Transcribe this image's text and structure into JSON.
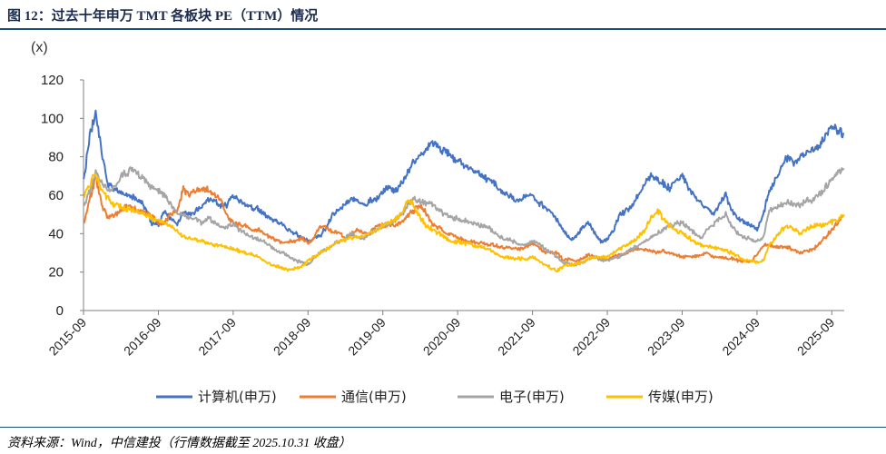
{
  "figure": {
    "title": "图 12：过去十年申万 TMT 各板块 PE（TTM）情况",
    "source": "资料来源：Wind，中信建投（行情数据截至 2025.10.31 收盘）"
  },
  "chart_data": {
    "type": "line",
    "ylabel": "(x)",
    "ylim": [
      0,
      120
    ],
    "yticks": [
      "0",
      "20",
      "40",
      "60",
      "80",
      "100",
      "120"
    ],
    "xlim": [
      2015.667,
      2025.833
    ],
    "xtick_labels": [
      "2015-09",
      "2016-09",
      "2017-09",
      "2018-09",
      "2019-09",
      "2020-09",
      "2021-09",
      "2022-09",
      "2023-09",
      "2024-09",
      "2025-09"
    ],
    "x": [
      2015.67,
      2015.75,
      2015.83,
      2015.92,
      2016.0,
      2016.08,
      2016.17,
      2016.25,
      2016.33,
      2016.42,
      2016.5,
      2016.58,
      2016.67,
      2016.75,
      2016.83,
      2016.92,
      2017.0,
      2017.08,
      2017.17,
      2017.25,
      2017.33,
      2017.42,
      2017.5,
      2017.58,
      2017.67,
      2017.75,
      2017.83,
      2017.92,
      2018.0,
      2018.08,
      2018.17,
      2018.25,
      2018.33,
      2018.42,
      2018.5,
      2018.58,
      2018.67,
      2018.75,
      2018.83,
      2018.92,
      2019.0,
      2019.08,
      2019.17,
      2019.25,
      2019.33,
      2019.42,
      2019.5,
      2019.58,
      2019.67,
      2019.75,
      2019.83,
      2019.92,
      2020.0,
      2020.08,
      2020.17,
      2020.25,
      2020.33,
      2020.42,
      2020.5,
      2020.58,
      2020.67,
      2020.75,
      2020.83,
      2020.92,
      2021.0,
      2021.08,
      2021.17,
      2021.25,
      2021.33,
      2021.42,
      2021.5,
      2021.58,
      2021.67,
      2021.75,
      2021.83,
      2021.92,
      2022.0,
      2022.08,
      2022.17,
      2022.25,
      2022.33,
      2022.42,
      2022.5,
      2022.58,
      2022.67,
      2022.75,
      2022.83,
      2022.92,
      2023.0,
      2023.08,
      2023.17,
      2023.25,
      2023.33,
      2023.42,
      2023.5,
      2023.58,
      2023.67,
      2023.75,
      2023.83,
      2023.92,
      2024.0,
      2024.08,
      2024.17,
      2024.25,
      2024.33,
      2024.42,
      2024.5,
      2024.58,
      2024.67,
      2024.75,
      2024.83,
      2024.92,
      2025.0,
      2025.08,
      2025.17,
      2025.25,
      2025.33,
      2025.42,
      2025.5,
      2025.58,
      2025.67,
      2025.75,
      2025.83
    ],
    "series": [
      {
        "name": "计算机(申万)",
        "color": "#4472c4",
        "values": [
          68,
          90,
          104,
          80,
          65,
          64,
          61,
          60,
          59,
          57,
          53,
          45,
          45,
          52,
          48,
          45,
          51,
          50,
          52,
          54,
          58,
          57,
          55,
          55,
          60,
          57,
          55,
          53,
          53,
          50,
          48,
          46,
          44,
          42,
          40,
          38,
          36,
          38,
          39,
          44,
          50,
          53,
          55,
          58,
          57,
          55,
          57,
          58,
          62,
          64,
          62,
          66,
          72,
          78,
          80,
          84,
          88,
          85,
          82,
          80,
          77,
          76,
          73,
          72,
          70,
          68,
          66,
          62,
          60,
          58,
          58,
          59,
          60,
          56,
          54,
          51,
          47,
          42,
          37,
          39,
          43,
          46,
          40,
          36,
          37,
          42,
          50,
          52,
          55,
          60,
          66,
          70,
          68,
          66,
          64,
          68,
          70,
          64,
          60,
          56,
          53,
          50,
          55,
          60,
          52,
          48,
          46,
          44,
          42,
          50,
          62,
          68,
          76,
          80,
          76,
          80,
          82,
          84,
          86,
          90,
          96,
          93,
          92
        ]
      },
      {
        "name": "通信(申万)",
        "color": "#ed7d31",
        "values": [
          45,
          58,
          70,
          54,
          48,
          50,
          52,
          55,
          53,
          52,
          50,
          49,
          46,
          46,
          50,
          52,
          63,
          61,
          62,
          64,
          63,
          60,
          58,
          50,
          45,
          45,
          44,
          42,
          42,
          40,
          38,
          37,
          35,
          36,
          36,
          38,
          35,
          38,
          44,
          43,
          41,
          40,
          38,
          40,
          42,
          40,
          41,
          44,
          44,
          45,
          44,
          46,
          50,
          52,
          55,
          50,
          45,
          43,
          40,
          40,
          38,
          37,
          36,
          35,
          35,
          34,
          34,
          33,
          33,
          32,
          32,
          33,
          35,
          33,
          30,
          30,
          30,
          26,
          27,
          26,
          27,
          29,
          28,
          27,
          27,
          28,
          29,
          30,
          31,
          32,
          32,
          31,
          30,
          31,
          30,
          29,
          28,
          28,
          28,
          29,
          30,
          28,
          28,
          27,
          27,
          26,
          26,
          26,
          29,
          34,
          34,
          33,
          33,
          33,
          31,
          30,
          31,
          32,
          35,
          38,
          42,
          46,
          49
        ]
      },
      {
        "name": "电子(申万)",
        "color": "#a5a5a5",
        "values": [
          55,
          62,
          72,
          66,
          62,
          65,
          70,
          72,
          73,
          70,
          68,
          64,
          62,
          60,
          55,
          50,
          50,
          48,
          48,
          45,
          48,
          46,
          44,
          43,
          45,
          42,
          40,
          38,
          37,
          36,
          33,
          31,
          30,
          28,
          26,
          25,
          24,
          27,
          30,
          32,
          34,
          36,
          38,
          40,
          38,
          38,
          40,
          42,
          44,
          45,
          47,
          50,
          55,
          58,
          56,
          56,
          55,
          52,
          50,
          48,
          48,
          47,
          46,
          45,
          44,
          43,
          40,
          38,
          37,
          36,
          34,
          34,
          36,
          35,
          32,
          30,
          28,
          25,
          24,
          24,
          25,
          27,
          28,
          26,
          26,
          27,
          28,
          30,
          32,
          34,
          36,
          38,
          40,
          42,
          44,
          45,
          46,
          43,
          40,
          38,
          42,
          45,
          48,
          50,
          44,
          40,
          38,
          37,
          36,
          38,
          52,
          54,
          55,
          57,
          55,
          55,
          57,
          58,
          60,
          64,
          68,
          72,
          74
        ]
      },
      {
        "name": "传媒(申万)",
        "color": "#ffc000",
        "values": [
          60,
          65,
          72,
          62,
          58,
          55,
          54,
          53,
          52,
          51,
          50,
          48,
          47,
          46,
          44,
          42,
          38,
          38,
          37,
          36,
          35,
          34,
          34,
          33,
          32,
          31,
          30,
          29,
          28,
          26,
          24,
          23,
          22,
          21,
          22,
          23,
          26,
          28,
          30,
          32,
          34,
          36,
          37,
          38,
          38,
          39,
          40,
          42,
          44,
          46,
          48,
          50,
          58,
          55,
          48,
          44,
          42,
          40,
          38,
          36,
          36,
          35,
          35,
          33,
          33,
          32,
          30,
          28,
          28,
          27,
          27,
          27,
          28,
          26,
          24,
          22,
          21,
          23,
          24,
          24,
          25,
          27,
          28,
          28,
          28,
          30,
          32,
          34,
          36,
          38,
          42,
          48,
          52,
          48,
          44,
          42,
          40,
          38,
          36,
          34,
          34,
          33,
          32,
          31,
          30,
          28,
          26,
          26,
          25,
          26,
          34,
          38,
          42,
          44,
          42,
          40,
          42,
          44,
          44,
          45,
          46,
          48,
          50
        ]
      }
    ],
    "legend_position": "bottom"
  }
}
